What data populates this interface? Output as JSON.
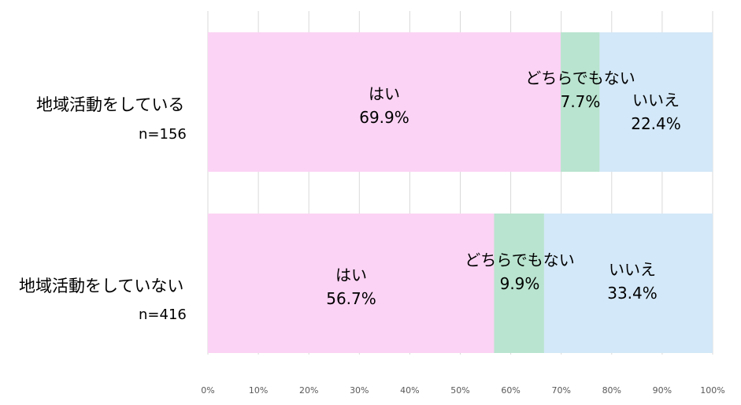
{
  "chart_data": {
    "type": "bar",
    "orientation": "horizontal",
    "stacked": true,
    "percent_scale": true,
    "categories": [
      "地域活動をしている",
      "地域活動をしていない"
    ],
    "sample_sizes": [
      "n=156",
      "n=416"
    ],
    "series": [
      {
        "name": "はい",
        "values": [
          69.9,
          56.7
        ],
        "labels": [
          "69.9%",
          "56.7%"
        ]
      },
      {
        "name": "どちらでもない",
        "values": [
          7.7,
          9.9
        ],
        "labels": [
          "7.7%",
          "9.9%"
        ]
      },
      {
        "name": "いいえ",
        "values": [
          22.4,
          33.4
        ],
        "labels": [
          "22.4%",
          "33.4%"
        ]
      }
    ],
    "colors": [
      "#FBD3F4",
      "#B9E4CF",
      "#D3E8F8"
    ],
    "xlim": [
      0,
      100
    ],
    "x_ticks": [
      "0%",
      "10%",
      "20%",
      "30%",
      "40%",
      "50%",
      "60%",
      "70%",
      "80%",
      "90%",
      "100%"
    ],
    "grid": "vertical",
    "legend": "none",
    "title": "",
    "xlabel": "",
    "ylabel": ""
  }
}
